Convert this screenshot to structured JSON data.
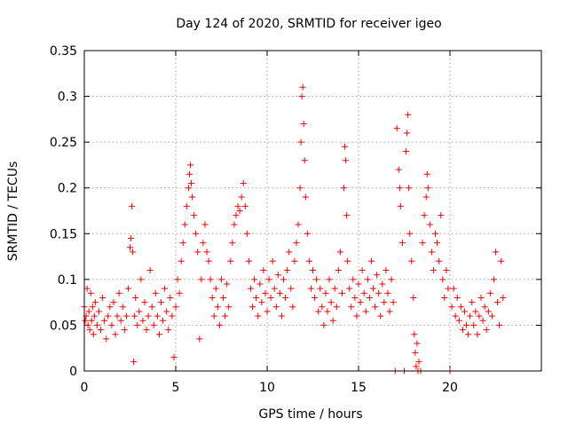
{
  "chart_data": {
    "type": "scatter",
    "title": "Day 124 of 2020, SRMTID for receiver igeo",
    "xlabel": "GPS time / hours",
    "ylabel": "SRMTID / TECUs",
    "xlim": [
      0,
      25
    ],
    "ylim": [
      0,
      0.35
    ],
    "xticks": [
      0,
      5,
      10,
      15,
      20
    ],
    "yticks": [
      0,
      0.05,
      0.1,
      0.15,
      0.2,
      0.25,
      0.3,
      0.35
    ],
    "xtick_labels": [
      "0",
      "5",
      "10",
      "15",
      "20"
    ],
    "ytick_labels": [
      "0",
      "0.05",
      "0.1",
      "0.15",
      "0.2",
      "0.25",
      "0.3",
      "0.35"
    ],
    "grid": true,
    "marker": "+",
    "color": "#ff0000",
    "series": [
      {
        "name": "SRMTID",
        "points": [
          [
            0.0,
            0.07
          ],
          [
            0.05,
            0.055
          ],
          [
            0.1,
            0.06
          ],
          [
            0.15,
            0.09
          ],
          [
            0.2,
            0.05
          ],
          [
            0.25,
            0.065
          ],
          [
            0.3,
            0.045
          ],
          [
            0.35,
            0.085
          ],
          [
            0.4,
            0.055
          ],
          [
            0.45,
            0.07
          ],
          [
            0.5,
            0.04
          ],
          [
            0.55,
            0.06
          ],
          [
            0.6,
            0.075
          ],
          [
            0.7,
            0.05
          ],
          [
            0.8,
            0.065
          ],
          [
            0.9,
            0.045
          ],
          [
            1.0,
            0.08
          ],
          [
            1.1,
            0.055
          ],
          [
            1.2,
            0.035
          ],
          [
            1.3,
            0.06
          ],
          [
            1.4,
            0.07
          ],
          [
            1.5,
            0.05
          ],
          [
            1.6,
            0.075
          ],
          [
            1.7,
            0.04
          ],
          [
            1.8,
            0.06
          ],
          [
            1.9,
            0.085
          ],
          [
            2.0,
            0.055
          ],
          [
            2.1,
            0.07
          ],
          [
            2.2,
            0.045
          ],
          [
            2.3,
            0.06
          ],
          [
            2.4,
            0.09
          ],
          [
            2.5,
            0.135
          ],
          [
            2.55,
            0.145
          ],
          [
            2.6,
            0.18
          ],
          [
            2.65,
            0.13
          ],
          [
            2.7,
            0.01
          ],
          [
            2.75,
            0.06
          ],
          [
            2.8,
            0.08
          ],
          [
            2.9,
            0.05
          ],
          [
            3.0,
            0.065
          ],
          [
            3.1,
            0.1
          ],
          [
            3.2,
            0.055
          ],
          [
            3.3,
            0.075
          ],
          [
            3.4,
            0.045
          ],
          [
            3.5,
            0.06
          ],
          [
            3.6,
            0.11
          ],
          [
            3.7,
            0.07
          ],
          [
            3.8,
            0.05
          ],
          [
            3.9,
            0.085
          ],
          [
            4.0,
            0.06
          ],
          [
            4.1,
            0.04
          ],
          [
            4.2,
            0.075
          ],
          [
            4.3,
            0.055
          ],
          [
            4.4,
            0.09
          ],
          [
            4.5,
            0.065
          ],
          [
            4.6,
            0.045
          ],
          [
            4.7,
            0.08
          ],
          [
            4.8,
            0.06
          ],
          [
            4.9,
            0.015
          ],
          [
            5.0,
            0.07
          ],
          [
            5.1,
            0.1
          ],
          [
            5.2,
            0.085
          ],
          [
            5.3,
            0.12
          ],
          [
            5.4,
            0.14
          ],
          [
            5.5,
            0.16
          ],
          [
            5.6,
            0.18
          ],
          [
            5.7,
            0.2
          ],
          [
            5.75,
            0.215
          ],
          [
            5.8,
            0.225
          ],
          [
            5.85,
            0.205
          ],
          [
            5.9,
            0.19
          ],
          [
            6.0,
            0.17
          ],
          [
            6.1,
            0.15
          ],
          [
            6.2,
            0.13
          ],
          [
            6.3,
            0.035
          ],
          [
            6.4,
            0.1
          ],
          [
            6.5,
            0.14
          ],
          [
            6.6,
            0.16
          ],
          [
            6.7,
            0.13
          ],
          [
            6.8,
            0.12
          ],
          [
            6.9,
            0.1
          ],
          [
            7.0,
            0.08
          ],
          [
            7.1,
            0.06
          ],
          [
            7.2,
            0.09
          ],
          [
            7.3,
            0.07
          ],
          [
            7.4,
            0.05
          ],
          [
            7.5,
            0.1
          ],
          [
            7.6,
            0.08
          ],
          [
            7.7,
            0.06
          ],
          [
            7.8,
            0.095
          ],
          [
            7.9,
            0.07
          ],
          [
            8.0,
            0.12
          ],
          [
            8.1,
            0.14
          ],
          [
            8.2,
            0.16
          ],
          [
            8.3,
            0.17
          ],
          [
            8.4,
            0.18
          ],
          [
            8.5,
            0.175
          ],
          [
            8.6,
            0.19
          ],
          [
            8.7,
            0.205
          ],
          [
            8.8,
            0.18
          ],
          [
            8.9,
            0.15
          ],
          [
            9.0,
            0.12
          ],
          [
            9.1,
            0.09
          ],
          [
            9.2,
            0.07
          ],
          [
            9.3,
            0.1
          ],
          [
            9.4,
            0.08
          ],
          [
            9.5,
            0.06
          ],
          [
            9.6,
            0.095
          ],
          [
            9.7,
            0.075
          ],
          [
            9.8,
            0.11
          ],
          [
            9.9,
            0.085
          ],
          [
            10.0,
            0.065
          ],
          [
            10.1,
            0.1
          ],
          [
            10.2,
            0.08
          ],
          [
            10.3,
            0.12
          ],
          [
            10.4,
            0.09
          ],
          [
            10.5,
            0.07
          ],
          [
            10.6,
            0.105
          ],
          [
            10.7,
            0.085
          ],
          [
            10.8,
            0.06
          ],
          [
            10.9,
            0.1
          ],
          [
            11.0,
            0.08
          ],
          [
            11.1,
            0.11
          ],
          [
            11.2,
            0.13
          ],
          [
            11.3,
            0.09
          ],
          [
            11.4,
            0.07
          ],
          [
            11.5,
            0.12
          ],
          [
            11.6,
            0.14
          ],
          [
            11.7,
            0.16
          ],
          [
            11.8,
            0.2
          ],
          [
            11.85,
            0.25
          ],
          [
            11.9,
            0.3
          ],
          [
            11.95,
            0.31
          ],
          [
            12.0,
            0.27
          ],
          [
            12.05,
            0.23
          ],
          [
            12.1,
            0.19
          ],
          [
            12.2,
            0.15
          ],
          [
            12.3,
            0.12
          ],
          [
            12.4,
            0.09
          ],
          [
            12.5,
            0.11
          ],
          [
            12.6,
            0.08
          ],
          [
            12.7,
            0.1
          ],
          [
            12.8,
            0.065
          ],
          [
            12.9,
            0.09
          ],
          [
            13.0,
            0.07
          ],
          [
            13.1,
            0.05
          ],
          [
            13.2,
            0.085
          ],
          [
            13.3,
            0.065
          ],
          [
            13.4,
            0.1
          ],
          [
            13.5,
            0.075
          ],
          [
            13.6,
            0.055
          ],
          [
            13.7,
            0.09
          ],
          [
            13.8,
            0.07
          ],
          [
            13.9,
            0.11
          ],
          [
            14.0,
            0.13
          ],
          [
            14.1,
            0.085
          ],
          [
            14.2,
            0.2
          ],
          [
            14.25,
            0.245
          ],
          [
            14.3,
            0.23
          ],
          [
            14.35,
            0.17
          ],
          [
            14.4,
            0.12
          ],
          [
            14.5,
            0.09
          ],
          [
            14.6,
            0.07
          ],
          [
            14.7,
            0.1
          ],
          [
            14.8,
            0.08
          ],
          [
            14.9,
            0.06
          ],
          [
            15.0,
            0.095
          ],
          [
            15.1,
            0.075
          ],
          [
            15.2,
            0.11
          ],
          [
            15.3,
            0.085
          ],
          [
            15.4,
            0.065
          ],
          [
            15.5,
            0.1
          ],
          [
            15.6,
            0.08
          ],
          [
            15.7,
            0.12
          ],
          [
            15.8,
            0.09
          ],
          [
            15.9,
            0.07
          ],
          [
            16.0,
            0.105
          ],
          [
            16.1,
            0.085
          ],
          [
            16.2,
            0.06
          ],
          [
            16.3,
            0.095
          ],
          [
            16.4,
            0.075
          ],
          [
            16.5,
            0.11
          ],
          [
            16.6,
            0.085
          ],
          [
            16.7,
            0.065
          ],
          [
            16.8,
            0.1
          ],
          [
            16.9,
            0.075
          ],
          [
            17.0,
            0.0
          ],
          [
            17.1,
            0.265
          ],
          [
            17.2,
            0.22
          ],
          [
            17.25,
            0.2
          ],
          [
            17.3,
            0.18
          ],
          [
            17.4,
            0.14
          ],
          [
            17.5,
            0.0
          ],
          [
            17.6,
            0.24
          ],
          [
            17.65,
            0.26
          ],
          [
            17.7,
            0.28
          ],
          [
            17.75,
            0.2
          ],
          [
            17.8,
            0.15
          ],
          [
            17.9,
            0.12
          ],
          [
            18.0,
            0.08
          ],
          [
            18.05,
            0.04
          ],
          [
            18.1,
            0.02
          ],
          [
            18.15,
            0.005
          ],
          [
            18.2,
            0.03
          ],
          [
            18.25,
            0.0
          ],
          [
            18.3,
            0.01
          ],
          [
            18.4,
            0.0
          ],
          [
            18.5,
            0.14
          ],
          [
            18.6,
            0.17
          ],
          [
            18.7,
            0.19
          ],
          [
            18.75,
            0.215
          ],
          [
            18.8,
            0.2
          ],
          [
            18.9,
            0.16
          ],
          [
            19.0,
            0.13
          ],
          [
            19.1,
            0.11
          ],
          [
            19.2,
            0.15
          ],
          [
            19.3,
            0.14
          ],
          [
            19.4,
            0.12
          ],
          [
            19.5,
            0.17
          ],
          [
            19.6,
            0.1
          ],
          [
            19.7,
            0.08
          ],
          [
            19.8,
            0.11
          ],
          [
            19.9,
            0.09
          ],
          [
            20.0,
            0.0
          ],
          [
            20.1,
            0.07
          ],
          [
            20.2,
            0.09
          ],
          [
            20.3,
            0.06
          ],
          [
            20.4,
            0.08
          ],
          [
            20.5,
            0.055
          ],
          [
            20.6,
            0.07
          ],
          [
            20.7,
            0.045
          ],
          [
            20.8,
            0.065
          ],
          [
            20.9,
            0.05
          ],
          [
            21.0,
            0.04
          ],
          [
            21.1,
            0.06
          ],
          [
            21.2,
            0.075
          ],
          [
            21.3,
            0.05
          ],
          [
            21.4,
            0.065
          ],
          [
            21.5,
            0.04
          ],
          [
            21.6,
            0.06
          ],
          [
            21.7,
            0.08
          ],
          [
            21.8,
            0.055
          ],
          [
            21.9,
            0.07
          ],
          [
            22.0,
            0.045
          ],
          [
            22.1,
            0.065
          ],
          [
            22.2,
            0.085
          ],
          [
            22.3,
            0.06
          ],
          [
            22.4,
            0.1
          ],
          [
            22.5,
            0.13
          ],
          [
            22.6,
            0.075
          ],
          [
            22.7,
            0.05
          ],
          [
            22.8,
            0.12
          ],
          [
            22.9,
            0.08
          ]
        ]
      }
    ]
  }
}
